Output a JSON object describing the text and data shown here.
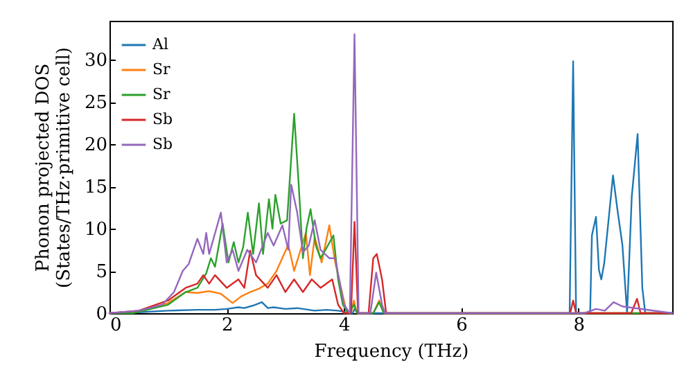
{
  "chart_data": {
    "type": "line",
    "xlabel": "Frequency (THz)",
    "ylabel": "Phonon projected DOS\n(States/THz·primitive cell)",
    "xlim": [
      0,
      9.6
    ],
    "ylim": [
      0,
      34.6
    ],
    "xticks": [
      0,
      2,
      4,
      6,
      8
    ],
    "yticks": [
      0,
      5,
      10,
      15,
      20,
      25,
      30
    ],
    "grid": false,
    "legend": "top left",
    "marker": "none",
    "line_style": "solid",
    "series": [
      {
        "name": "Al",
        "color": "#1f77b4",
        "x": [
          0,
          0.5,
          1.0,
          1.5,
          1.8,
          2.0,
          2.2,
          2.3,
          2.45,
          2.6,
          2.7,
          2.8,
          3.0,
          3.2,
          3.5,
          3.7,
          3.9,
          4.05,
          4.15,
          4.18,
          4.25,
          7.85,
          7.91,
          7.96,
          8.2,
          8.23,
          8.3,
          8.35,
          8.39,
          8.44,
          8.59,
          8.67,
          8.75,
          8.83,
          8.91,
          9.01,
          9.09,
          9.14,
          9.6
        ],
        "values": [
          0,
          0.1,
          0.3,
          0.4,
          0.4,
          0.5,
          0.7,
          0.6,
          0.9,
          1.3,
          0.6,
          0.7,
          0.5,
          0.6,
          0.3,
          0.4,
          0.3,
          0.1,
          0,
          0.5,
          0,
          0,
          29.8,
          0,
          0,
          9.2,
          11.4,
          5.1,
          4.0,
          5.9,
          16.3,
          12,
          8.1,
          0,
          13.8,
          21.2,
          3,
          0,
          0
        ]
      },
      {
        "name": "Sr",
        "color": "#ff7f0e",
        "x": [
          0,
          0.5,
          1.0,
          1.3,
          1.5,
          1.7,
          1.9,
          2.1,
          2.25,
          2.4,
          2.55,
          2.7,
          2.85,
          3.05,
          3.15,
          3.35,
          3.42,
          3.5,
          3.62,
          3.75,
          3.85,
          3.95,
          4.05,
          4.12,
          4.17,
          4.22,
          4.5,
          4.6,
          4.68,
          9.6
        ],
        "values": [
          0,
          0.2,
          1.2,
          2.5,
          2.4,
          2.6,
          2.3,
          1.2,
          2,
          2.5,
          2.9,
          3.5,
          5,
          8.1,
          5,
          9.5,
          4.5,
          9,
          6,
          10.4,
          6,
          3,
          0,
          0,
          1.5,
          0,
          0,
          1.5,
          0,
          0
        ]
      },
      {
        "name": "Sr",
        "color": "#2ca02c",
        "x": [
          0,
          0.4,
          1.0,
          1.3,
          1.5,
          1.65,
          1.73,
          1.8,
          1.93,
          2.03,
          2.12,
          2.2,
          2.28,
          2.36,
          2.45,
          2.55,
          2.62,
          2.72,
          2.78,
          2.83,
          2.92,
          3.03,
          3.15,
          3.23,
          3.3,
          3.36,
          3.43,
          3.52,
          3.6,
          3.7,
          3.82,
          3.9,
          3.98,
          4.08,
          4.17,
          4.22,
          4.5,
          4.6,
          4.68,
          9.6
        ],
        "values": [
          0,
          0,
          1,
          2.5,
          3,
          4.7,
          6.5,
          5.5,
          10.6,
          6,
          8.4,
          6,
          7.8,
          11.9,
          7,
          13,
          7,
          13.5,
          10,
          14,
          10.6,
          11,
          23.6,
          15,
          6.5,
          10,
          12.3,
          8,
          6.5,
          7.7,
          9.2,
          4,
          1,
          0,
          1,
          0,
          0,
          1.3,
          0,
          0
        ]
      },
      {
        "name": "Sb",
        "color": "#d62728",
        "x": [
          0,
          0.5,
          1.0,
          1.3,
          1.5,
          1.6,
          1.7,
          1.8,
          2.0,
          2.2,
          2.3,
          2.4,
          2.5,
          2.7,
          2.85,
          3.0,
          3.15,
          3.3,
          3.45,
          3.6,
          3.8,
          3.9,
          4.0,
          4.12,
          4.18,
          4.24,
          4.42,
          4.5,
          4.56,
          4.65,
          4.72,
          7.86,
          7.91,
          7.96,
          8.9,
          9.0,
          9.06,
          9.6
        ],
        "values": [
          0,
          0.3,
          1.5,
          3,
          3.5,
          4.5,
          3.5,
          4.5,
          3,
          4,
          3,
          7.4,
          4.5,
          3,
          4.5,
          2.5,
          4,
          2.5,
          4,
          3,
          4,
          1,
          0,
          0,
          10.8,
          0,
          0,
          6.5,
          7,
          4,
          0,
          0,
          1.5,
          0,
          0,
          1.7,
          0,
          0
        ]
      },
      {
        "name": "Sb",
        "color": "#9467bd",
        "x": [
          0,
          0.5,
          0.9,
          1.1,
          1.25,
          1.35,
          1.5,
          1.6,
          1.65,
          1.7,
          1.9,
          2.0,
          2.1,
          2.2,
          2.35,
          2.5,
          2.7,
          2.8,
          2.95,
          3.05,
          3.1,
          3.2,
          3.3,
          3.4,
          3.5,
          3.6,
          3.75,
          3.85,
          4.0,
          4.1,
          4.18,
          4.25,
          4.45,
          4.55,
          4.65,
          4.7,
          8.1,
          8.3,
          8.45,
          8.6,
          8.75,
          9.6
        ],
        "values": [
          0,
          0.3,
          1,
          2.5,
          5,
          5.8,
          8.8,
          7,
          9.5,
          7,
          11.9,
          6,
          7.5,
          5,
          7.5,
          6,
          9.5,
          8,
          10.4,
          7.5,
          15.2,
          12,
          7.2,
          8,
          11,
          7.5,
          6.5,
          6.5,
          1,
          0,
          33,
          0,
          0,
          4.8,
          1,
          0,
          0,
          0.5,
          0.3,
          1.3,
          0.8,
          0
        ]
      }
    ]
  }
}
